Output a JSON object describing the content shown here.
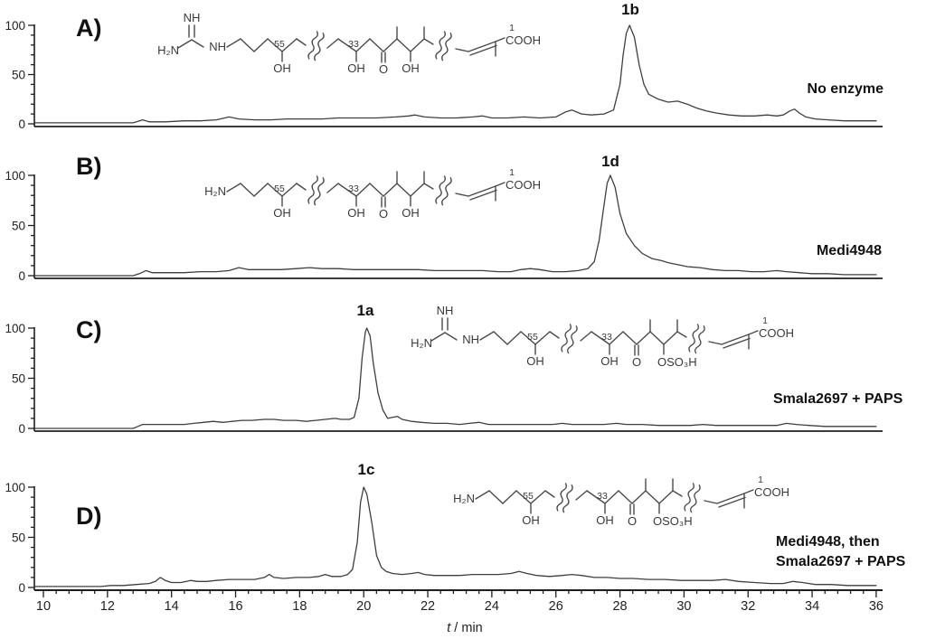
{
  "figure": {
    "kind": "HPLC chromatogram comparison, four stacked panels sharing one time axis"
  },
  "axis": {
    "title_t": "t",
    "title_rest": " / min",
    "x_min": 10,
    "x_max": 36,
    "x_ticks": [
      10,
      12,
      14,
      16,
      18,
      20,
      22,
      24,
      26,
      28,
      30,
      32,
      34,
      36
    ],
    "x_minor_step": 0.4,
    "y_ticks": [
      0,
      50,
      100
    ],
    "y_minor_step": 10
  },
  "structure_labels": {
    "h2n": "H₂N",
    "nh": "NH",
    "oh": "OH",
    "o": "O",
    "cooh": "COOH",
    "oso3h": "OSO₃H",
    "n55": "55",
    "n33": "33",
    "n1": "1"
  },
  "chart_data": {
    "type": "line",
    "xlabel": "t / min",
    "xlim": [
      10,
      36
    ],
    "ylim": [
      0,
      100
    ],
    "grid": false,
    "panels": [
      {
        "label": "A)",
        "peak_label": "1b",
        "peak_time_min": 28.3,
        "condition_lines": [
          "No enzyme"
        ],
        "structure": {
          "head": "guanidine",
          "mid": "OH",
          "carbon_numbers": [
            "55",
            "33",
            "1"
          ]
        },
        "points": [
          [
            10,
            1
          ],
          [
            10.8,
            1
          ],
          [
            11.6,
            1
          ],
          [
            12.4,
            1
          ],
          [
            12.8,
            1
          ],
          [
            13.0,
            3
          ],
          [
            13.1,
            4
          ],
          [
            13.3,
            2
          ],
          [
            13.8,
            2
          ],
          [
            14.4,
            3
          ],
          [
            14.9,
            3
          ],
          [
            15.4,
            4
          ],
          [
            15.8,
            7
          ],
          [
            16.1,
            5
          ],
          [
            16.6,
            4
          ],
          [
            17.1,
            4
          ],
          [
            17.6,
            5
          ],
          [
            18.1,
            5
          ],
          [
            18.7,
            5
          ],
          [
            19.2,
            6
          ],
          [
            19.8,
            6
          ],
          [
            20.4,
            6
          ],
          [
            21.0,
            7
          ],
          [
            21.4,
            8
          ],
          [
            21.6,
            9
          ],
          [
            21.9,
            7
          ],
          [
            22.4,
            6
          ],
          [
            22.9,
            6
          ],
          [
            23.4,
            7
          ],
          [
            23.7,
            8
          ],
          [
            24.0,
            6
          ],
          [
            24.5,
            6
          ],
          [
            25.0,
            7
          ],
          [
            25.5,
            6
          ],
          [
            26.0,
            7
          ],
          [
            26.3,
            12
          ],
          [
            26.5,
            14
          ],
          [
            26.8,
            10
          ],
          [
            27.1,
            9
          ],
          [
            27.5,
            10
          ],
          [
            27.8,
            14
          ],
          [
            28.0,
            40
          ],
          [
            28.1,
            70
          ],
          [
            28.2,
            92
          ],
          [
            28.3,
            100
          ],
          [
            28.45,
            88
          ],
          [
            28.6,
            60
          ],
          [
            28.75,
            40
          ],
          [
            28.9,
            30
          ],
          [
            29.2,
            25
          ],
          [
            29.5,
            22
          ],
          [
            29.8,
            23
          ],
          [
            30.1,
            20
          ],
          [
            30.4,
            16
          ],
          [
            30.7,
            13
          ],
          [
            31.0,
            11
          ],
          [
            31.4,
            9
          ],
          [
            31.8,
            8
          ],
          [
            32.2,
            8
          ],
          [
            32.6,
            9
          ],
          [
            32.9,
            8
          ],
          [
            33.1,
            9
          ],
          [
            33.3,
            13
          ],
          [
            33.45,
            15
          ],
          [
            33.6,
            11
          ],
          [
            33.8,
            7
          ],
          [
            34.1,
            5
          ],
          [
            34.5,
            4
          ],
          [
            35.0,
            3
          ],
          [
            35.5,
            3
          ],
          [
            36,
            3
          ]
        ]
      },
      {
        "label": "B)",
        "peak_label": "1d",
        "peak_time_min": 27.7,
        "condition_lines": [
          "Medi4948"
        ],
        "structure": {
          "head": "amine",
          "mid": "OH",
          "carbon_numbers": [
            "55",
            "33",
            "1"
          ]
        },
        "points": [
          [
            10,
            0
          ],
          [
            11,
            0
          ],
          [
            12,
            0
          ],
          [
            12.8,
            0
          ],
          [
            13.0,
            2
          ],
          [
            13.2,
            5
          ],
          [
            13.4,
            3
          ],
          [
            13.9,
            3
          ],
          [
            14.4,
            3
          ],
          [
            14.9,
            4
          ],
          [
            15.4,
            4
          ],
          [
            15.8,
            5
          ],
          [
            16.1,
            8
          ],
          [
            16.4,
            6
          ],
          [
            16.9,
            6
          ],
          [
            17.4,
            6
          ],
          [
            17.9,
            7
          ],
          [
            18.3,
            8
          ],
          [
            18.7,
            7
          ],
          [
            19.2,
            7
          ],
          [
            19.7,
            6
          ],
          [
            20.2,
            6
          ],
          [
            20.7,
            6
          ],
          [
            21.2,
            6
          ],
          [
            21.7,
            6
          ],
          [
            22.2,
            5
          ],
          [
            22.7,
            5
          ],
          [
            23.2,
            5
          ],
          [
            23.7,
            5
          ],
          [
            24.2,
            4
          ],
          [
            24.6,
            4
          ],
          [
            24.9,
            6
          ],
          [
            25.2,
            7
          ],
          [
            25.5,
            6
          ],
          [
            25.9,
            4
          ],
          [
            26.3,
            4
          ],
          [
            26.7,
            5
          ],
          [
            27.0,
            7
          ],
          [
            27.2,
            14
          ],
          [
            27.35,
            35
          ],
          [
            27.5,
            70
          ],
          [
            27.6,
            92
          ],
          [
            27.7,
            100
          ],
          [
            27.85,
            88
          ],
          [
            28.0,
            62
          ],
          [
            28.2,
            42
          ],
          [
            28.45,
            30
          ],
          [
            28.7,
            22
          ],
          [
            29.0,
            17
          ],
          [
            29.3,
            15
          ],
          [
            29.5,
            13
          ],
          [
            29.8,
            11
          ],
          [
            30.1,
            9
          ],
          [
            30.5,
            8
          ],
          [
            30.9,
            6
          ],
          [
            31.3,
            5
          ],
          [
            31.7,
            5
          ],
          [
            32.1,
            4
          ],
          [
            32.5,
            4
          ],
          [
            32.9,
            5
          ],
          [
            33.2,
            4
          ],
          [
            33.6,
            3
          ],
          [
            34.0,
            2
          ],
          [
            34.5,
            2
          ],
          [
            35.0,
            1
          ],
          [
            35.5,
            1
          ],
          [
            36,
            1
          ]
        ]
      },
      {
        "label": "C)",
        "peak_label": "1a",
        "peak_time_min": 20.1,
        "condition_lines": [
          "Smala2697 + PAPS"
        ],
        "structure": {
          "head": "guanidine",
          "mid": "OSO3H",
          "carbon_numbers": [
            "55",
            "33",
            "1"
          ]
        },
        "points": [
          [
            10,
            0
          ],
          [
            11,
            0
          ],
          [
            12,
            0
          ],
          [
            12.8,
            0
          ],
          [
            12.95,
            2
          ],
          [
            13.1,
            4
          ],
          [
            13.4,
            4
          ],
          [
            13.9,
            4
          ],
          [
            14.4,
            4
          ],
          [
            14.7,
            5
          ],
          [
            15.0,
            6
          ],
          [
            15.3,
            7
          ],
          [
            15.6,
            6
          ],
          [
            15.9,
            7
          ],
          [
            16.2,
            8
          ],
          [
            16.5,
            8
          ],
          [
            16.9,
            9
          ],
          [
            17.2,
            9
          ],
          [
            17.5,
            8
          ],
          [
            17.9,
            8
          ],
          [
            18.2,
            7
          ],
          [
            18.5,
            8
          ],
          [
            18.8,
            9
          ],
          [
            19.1,
            10
          ],
          [
            19.3,
            9
          ],
          [
            19.55,
            9
          ],
          [
            19.7,
            11
          ],
          [
            19.85,
            30
          ],
          [
            19.95,
            70
          ],
          [
            20.05,
            96
          ],
          [
            20.1,
            100
          ],
          [
            20.2,
            92
          ],
          [
            20.3,
            65
          ],
          [
            20.45,
            35
          ],
          [
            20.6,
            18
          ],
          [
            20.75,
            10
          ],
          [
            20.9,
            11
          ],
          [
            21.05,
            12
          ],
          [
            21.2,
            9
          ],
          [
            21.5,
            7
          ],
          [
            21.8,
            6
          ],
          [
            22.2,
            5
          ],
          [
            22.6,
            5
          ],
          [
            23.0,
            4
          ],
          [
            23.3,
            5
          ],
          [
            23.6,
            6
          ],
          [
            23.9,
            4
          ],
          [
            24.4,
            4
          ],
          [
            24.9,
            4
          ],
          [
            25.4,
            4
          ],
          [
            25.9,
            4
          ],
          [
            26.2,
            5
          ],
          [
            26.5,
            4
          ],
          [
            27.0,
            4
          ],
          [
            27.5,
            4
          ],
          [
            27.9,
            5
          ],
          [
            28.2,
            4
          ],
          [
            28.7,
            4
          ],
          [
            29.2,
            3
          ],
          [
            29.7,
            3
          ],
          [
            30.2,
            3
          ],
          [
            30.6,
            4
          ],
          [
            31.0,
            3
          ],
          [
            31.5,
            3
          ],
          [
            32.0,
            3
          ],
          [
            32.5,
            3
          ],
          [
            32.9,
            3
          ],
          [
            33.2,
            5
          ],
          [
            33.5,
            4
          ],
          [
            33.9,
            3
          ],
          [
            34.4,
            2
          ],
          [
            34.9,
            2
          ],
          [
            35.5,
            2
          ],
          [
            36,
            2
          ]
        ]
      },
      {
        "label": "D)",
        "peak_label": "1c",
        "peak_time_min": 20.0,
        "condition_lines": [
          "Medi4948, then",
          "Smala2697 + PAPS"
        ],
        "structure": {
          "head": "amine",
          "mid": "OSO3H",
          "carbon_numbers": [
            "55",
            "33",
            "1"
          ]
        },
        "points": [
          [
            10,
            1
          ],
          [
            10.6,
            1
          ],
          [
            11.2,
            1
          ],
          [
            11.8,
            1
          ],
          [
            12.1,
            2
          ],
          [
            12.5,
            2
          ],
          [
            12.9,
            3
          ],
          [
            13.3,
            4
          ],
          [
            13.5,
            6
          ],
          [
            13.65,
            10
          ],
          [
            13.8,
            7
          ],
          [
            14.0,
            5
          ],
          [
            14.3,
            5
          ],
          [
            14.6,
            7
          ],
          [
            14.8,
            6
          ],
          [
            15.1,
            6
          ],
          [
            15.4,
            7
          ],
          [
            15.8,
            8
          ],
          [
            16.2,
            8
          ],
          [
            16.6,
            8
          ],
          [
            16.9,
            10
          ],
          [
            17.05,
            13
          ],
          [
            17.2,
            10
          ],
          [
            17.5,
            9
          ],
          [
            17.9,
            10
          ],
          [
            18.3,
            10
          ],
          [
            18.6,
            11
          ],
          [
            18.8,
            13
          ],
          [
            19.0,
            11
          ],
          [
            19.3,
            11
          ],
          [
            19.5,
            13
          ],
          [
            19.65,
            18
          ],
          [
            19.8,
            45
          ],
          [
            19.9,
            85
          ],
          [
            20.0,
            100
          ],
          [
            20.1,
            93
          ],
          [
            20.25,
            65
          ],
          [
            20.4,
            32
          ],
          [
            20.55,
            20
          ],
          [
            20.7,
            16
          ],
          [
            20.9,
            14
          ],
          [
            21.2,
            13
          ],
          [
            21.5,
            14
          ],
          [
            21.7,
            15
          ],
          [
            21.9,
            13
          ],
          [
            22.2,
            12
          ],
          [
            22.6,
            12
          ],
          [
            23.0,
            12
          ],
          [
            23.4,
            13
          ],
          [
            23.8,
            13
          ],
          [
            24.2,
            13
          ],
          [
            24.6,
            14
          ],
          [
            24.85,
            16
          ],
          [
            25.1,
            14
          ],
          [
            25.4,
            12
          ],
          [
            25.8,
            11
          ],
          [
            26.2,
            12
          ],
          [
            26.5,
            13
          ],
          [
            26.8,
            12
          ],
          [
            27.2,
            10
          ],
          [
            27.6,
            10
          ],
          [
            28.0,
            9
          ],
          [
            28.4,
            9
          ],
          [
            28.9,
            8
          ],
          [
            29.4,
            8
          ],
          [
            29.9,
            7
          ],
          [
            30.4,
            7
          ],
          [
            30.9,
            7
          ],
          [
            31.3,
            8
          ],
          [
            31.7,
            6
          ],
          [
            32.2,
            5
          ],
          [
            32.7,
            4
          ],
          [
            33.1,
            4
          ],
          [
            33.4,
            6
          ],
          [
            33.7,
            5
          ],
          [
            34.1,
            3
          ],
          [
            34.6,
            3
          ],
          [
            35.1,
            2
          ],
          [
            35.6,
            2
          ],
          [
            36,
            2
          ]
        ]
      }
    ]
  },
  "colors": {
    "trace": "#3f3f3f",
    "axis": "#1f1f1f",
    "structure": "#4a4a4a",
    "background": "#ffffff"
  }
}
